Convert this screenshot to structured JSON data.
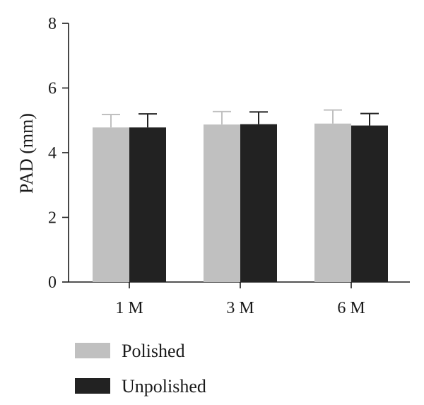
{
  "chart_data": {
    "type": "bar",
    "title": "",
    "xlabel": "",
    "ylabel": "PAD (mm)",
    "ylim": [
      0,
      8
    ],
    "yticks": [
      "0",
      "2",
      "4",
      "6",
      "8"
    ],
    "categories": [
      "1 M",
      "3 M",
      "6 M"
    ],
    "series": [
      {
        "name": "Polished",
        "color": "#c0c0c0",
        "values": [
          4.78,
          4.87,
          4.9
        ],
        "errors": [
          0.4,
          0.4,
          0.42
        ]
      },
      {
        "name": "Unpolished",
        "color": "#222222",
        "values": [
          4.78,
          4.88,
          4.84
        ],
        "errors": [
          0.42,
          0.38,
          0.37
        ]
      }
    ],
    "legend_position": "bottom-left",
    "grid": false
  }
}
